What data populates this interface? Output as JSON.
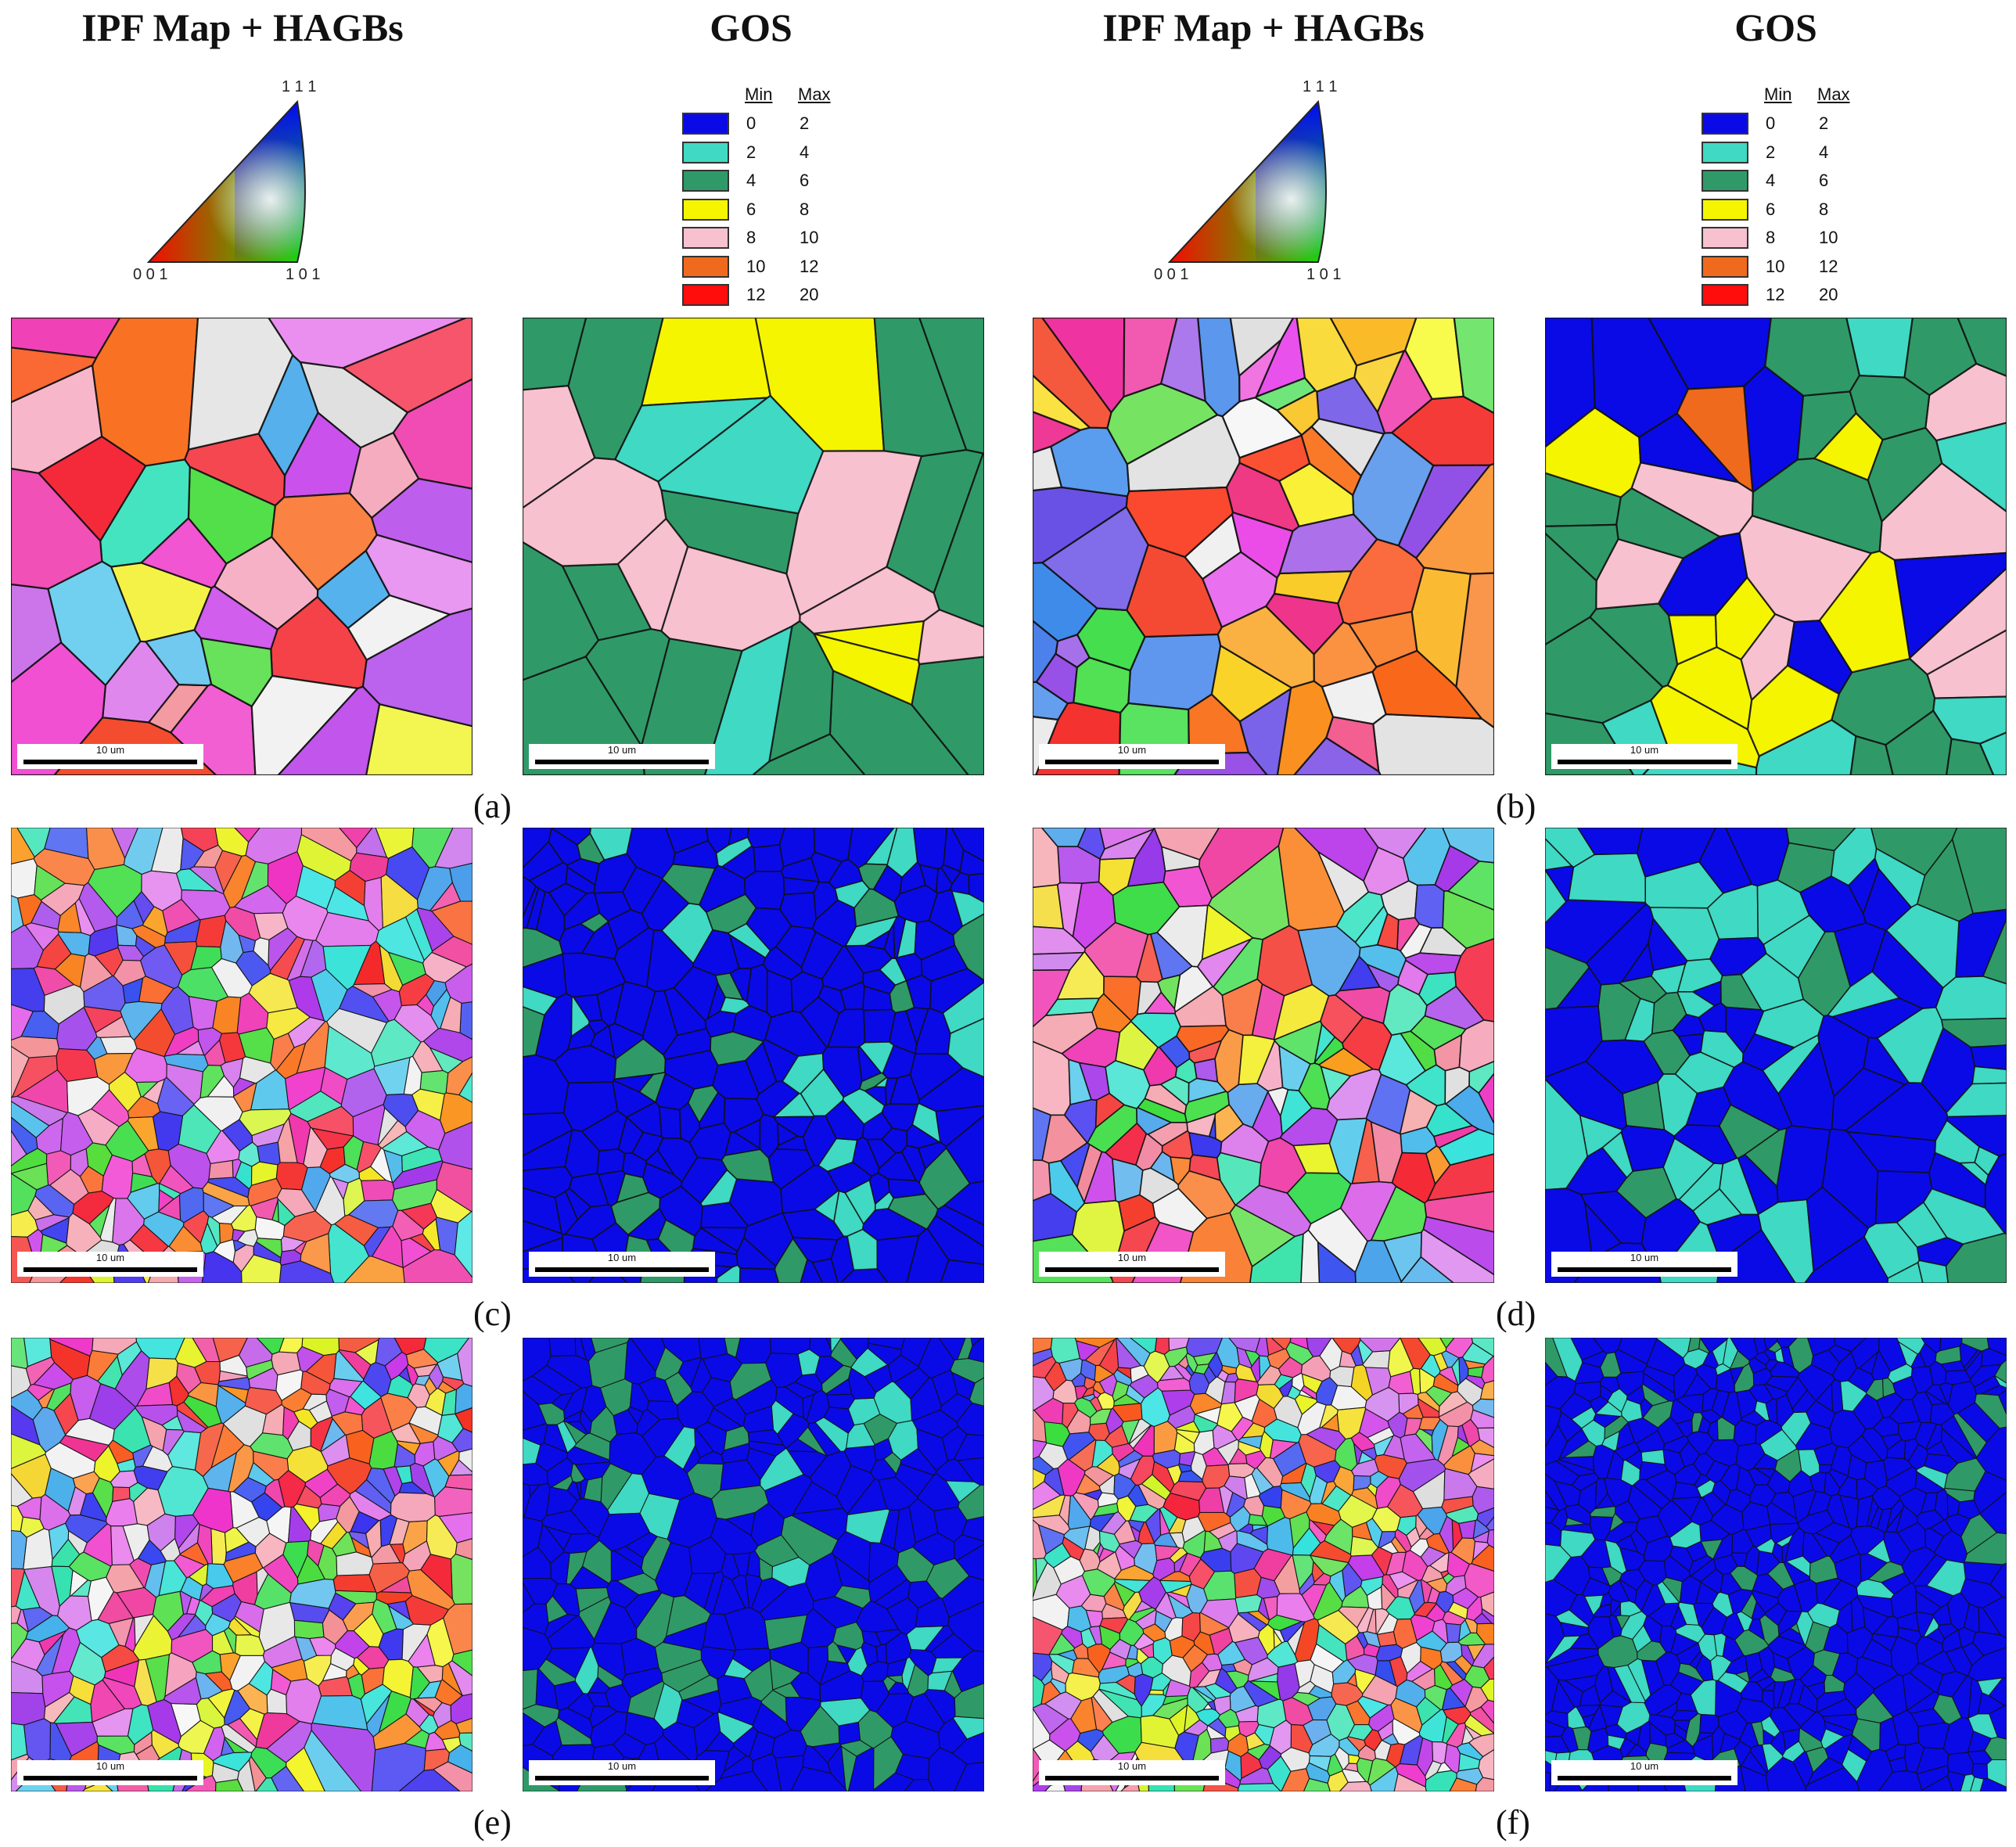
{
  "column_headers": [
    "IPF Map + HAGBs",
    "GOS",
    "IPF Map + HAGBs",
    "GOS"
  ],
  "ipf_legend": {
    "labels": {
      "top": "1 1 1",
      "left": "0 0 1",
      "right": "1 0 1"
    },
    "colors": {
      "corner_001": "#ff0000",
      "corner_101": "#00ff00",
      "corner_111": "#0000ff"
    }
  },
  "gos_legend": {
    "min_label": "Min",
    "max_label": "Max",
    "bins": [
      {
        "min": "0",
        "max": "2",
        "color": "#0a0ae6"
      },
      {
        "min": "2",
        "max": "4",
        "color": "#3fd9c4"
      },
      {
        "min": "4",
        "max": "6",
        "color": "#2f9a68"
      },
      {
        "min": "6",
        "max": "8",
        "color": "#f5f500"
      },
      {
        "min": "8",
        "max": "10",
        "color": "#f7c1cf"
      },
      {
        "min": "10",
        "max": "12",
        "color": "#f06a1e"
      },
      {
        "min": "12",
        "max": "20",
        "color": "#ff0d0d"
      }
    ]
  },
  "scale_bar_label": "10 um",
  "panel_labels": [
    "(a)",
    "(b)",
    "(c)",
    "(d)",
    "(e)",
    "(f)"
  ]
}
